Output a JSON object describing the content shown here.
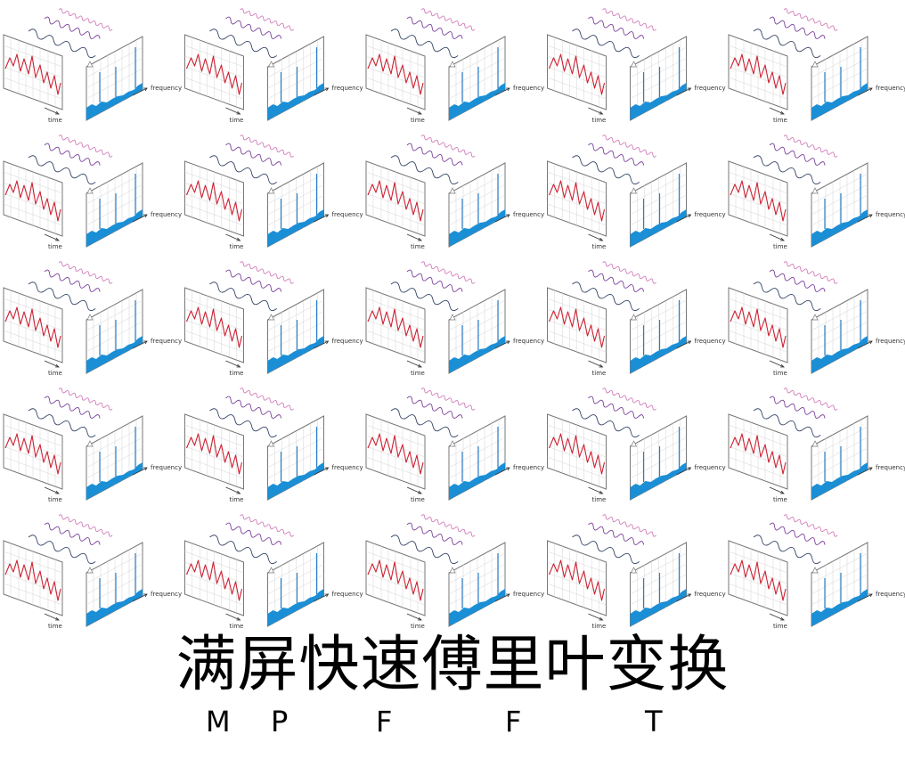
{
  "diagram": {
    "frequency_label": "frequency",
    "time_label": "time",
    "grid_rows": 5,
    "grid_cols": 5,
    "colors": {
      "time_signal": "#cc2233",
      "spectrum_fill": "#1b8fd6",
      "spectrum_peaks": "#2b7fc8",
      "wave_near": "#334466",
      "wave_mid": "#7a3f9a",
      "wave_far": "#d27ab8",
      "panel_border": "#777777",
      "panel_grid": "#cccccc"
    }
  },
  "caption": {
    "title": "满屏快速傅里叶变换",
    "letters": [
      "M",
      "P",
      "F",
      "F",
      "T"
    ]
  }
}
